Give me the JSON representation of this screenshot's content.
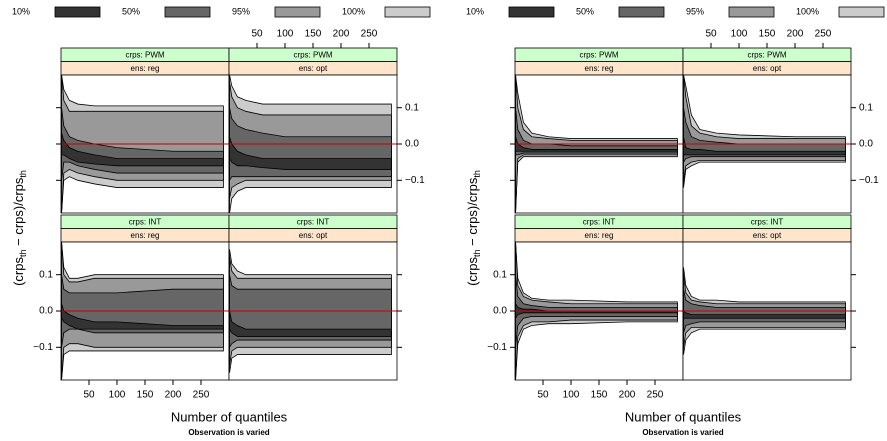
{
  "chart_data": [
    {
      "type": "band",
      "series": [
        {
          "name": "10%",
          "color": "#333333"
        },
        {
          "name": "50%",
          "color": "#666666"
        },
        {
          "name": "95%",
          "color": "#999999"
        },
        {
          "name": "100%",
          "color": "#cccccc"
        }
      ],
      "xlabel": "Number of quantiles",
      "subtitle": "Observation is varied",
      "ylabel": [
        "(crps",
        "th",
        " − crps)",
        "/",
        "crps",
        "th"
      ],
      "xlim": [
        0,
        300
      ],
      "ylim": [
        -0.19,
        0.19
      ],
      "xticks": [
        50,
        100,
        150,
        200,
        250
      ],
      "yticks": [
        {
          "value": -0.1,
          "label": "−0.1"
        },
        {
          "value": 0,
          "label": "0.0"
        },
        0.1
      ],
      "ref_line": 0,
      "ref_color": "#cc0000",
      "x": [
        1,
        5,
        15,
        30,
        60,
        100,
        200,
        290
      ],
      "panels": [
        {
          "strips": [
            "crps: PWM",
            "ens: reg"
          ],
          "bands": [
            {
              "lower": [
                -0.03,
                -0.03,
                -0.04,
                -0.05,
                -0.055,
                -0.06,
                -0.06,
                -0.06
              ],
              "upper": [
                0.03,
                0.01,
                -0.01,
                -0.02,
                -0.03,
                -0.04,
                -0.04,
                -0.04
              ]
            },
            {
              "lower": [
                -0.1,
                -0.05,
                -0.05,
                -0.06,
                -0.07,
                -0.08,
                -0.08,
                -0.08
              ],
              "upper": [
                0.1,
                0.05,
                0.02,
                0.01,
                0.0,
                -0.01,
                -0.02,
                -0.02
              ]
            },
            {
              "lower": [
                -0.19,
                -0.08,
                -0.07,
                -0.08,
                -0.09,
                -0.1,
                -0.1,
                -0.1
              ],
              "upper": [
                0.19,
                0.12,
                0.09,
                0.09,
                0.09,
                0.09,
                0.09,
                0.09
              ]
            },
            {
              "lower": [
                -0.19,
                -0.1,
                -0.09,
                -0.1,
                -0.11,
                -0.12,
                -0.12,
                -0.12
              ],
              "upper": [
                0.19,
                0.15,
                0.12,
                0.11,
                0.105,
                0.105,
                0.105,
                0.105
              ]
            }
          ]
        },
        {
          "strips": [
            "crps: PWM",
            "ens: opt"
          ],
          "bands": [
            {
              "lower": [
                -0.04,
                -0.05,
                -0.06,
                -0.06,
                -0.065,
                -0.07,
                -0.07,
                -0.07
              ],
              "upper": [
                0.02,
                0.0,
                -0.02,
                -0.03,
                -0.04,
                -0.04,
                -0.04,
                -0.04
              ]
            },
            {
              "lower": [
                -0.1,
                -0.09,
                -0.09,
                -0.09,
                -0.09,
                -0.09,
                -0.09,
                -0.09
              ],
              "upper": [
                0.1,
                0.07,
                0.05,
                0.04,
                0.03,
                0.02,
                0.02,
                0.02
              ]
            },
            {
              "lower": [
                -0.15,
                -0.12,
                -0.11,
                -0.1,
                -0.1,
                -0.1,
                -0.1,
                -0.1
              ],
              "upper": [
                0.17,
                0.13,
                0.1,
                0.09,
                0.08,
                0.08,
                0.08,
                0.08
              ]
            },
            {
              "lower": [
                -0.19,
                -0.15,
                -0.13,
                -0.12,
                -0.12,
                -0.12,
                -0.12,
                -0.12
              ],
              "upper": [
                0.19,
                0.16,
                0.13,
                0.12,
                0.11,
                0.11,
                0.11,
                0.11
              ]
            }
          ]
        },
        {
          "strips": [
            "crps: INT",
            "ens: reg"
          ],
          "bands": [
            {
              "lower": [
                -0.02,
                -0.03,
                -0.04,
                -0.05,
                -0.05,
                -0.05,
                -0.05,
                -0.05
              ],
              "upper": [
                0.02,
                0.0,
                -0.01,
                -0.02,
                -0.03,
                -0.03,
                -0.04,
                -0.04
              ]
            },
            {
              "lower": [
                -0.1,
                -0.06,
                -0.05,
                -0.05,
                -0.06,
                -0.06,
                -0.06,
                -0.06
              ],
              "upper": [
                0.1,
                0.06,
                0.05,
                0.05,
                0.05,
                0.05,
                0.06,
                0.06
              ]
            },
            {
              "lower": [
                -0.19,
                -0.1,
                -0.09,
                -0.09,
                -0.1,
                -0.1,
                -0.1,
                -0.1
              ],
              "upper": [
                0.19,
                0.1,
                0.08,
                0.08,
                0.09,
                0.09,
                0.09,
                0.09
              ]
            },
            {
              "lower": [
                -0.19,
                -0.12,
                -0.11,
                -0.11,
                -0.11,
                -0.11,
                -0.11,
                -0.11
              ],
              "upper": [
                0.19,
                0.12,
                0.09,
                0.09,
                0.1,
                0.1,
                0.1,
                0.1
              ]
            }
          ]
        },
        {
          "strips": [
            "crps: INT",
            "ens: opt"
          ],
          "bands": [
            {
              "lower": [
                -0.05,
                -0.06,
                -0.07,
                -0.07,
                -0.07,
                -0.07,
                -0.07,
                -0.07
              ],
              "upper": [
                0.0,
                -0.03,
                -0.04,
                -0.05,
                -0.05,
                -0.05,
                -0.05,
                -0.05
              ]
            },
            {
              "lower": [
                -0.1,
                -0.09,
                -0.08,
                -0.08,
                -0.08,
                -0.08,
                -0.08,
                -0.08
              ],
              "upper": [
                0.1,
                0.07,
                0.06,
                0.06,
                0.06,
                0.06,
                0.06,
                0.06
              ]
            },
            {
              "lower": [
                -0.15,
                -0.11,
                -0.1,
                -0.1,
                -0.1,
                -0.1,
                -0.1,
                -0.1
              ],
              "upper": [
                0.15,
                0.11,
                0.09,
                0.09,
                0.09,
                0.09,
                0.09,
                0.09
              ]
            },
            {
              "lower": [
                -0.17,
                -0.13,
                -0.12,
                -0.12,
                -0.12,
                -0.12,
                -0.12,
                -0.12
              ],
              "upper": [
                0.17,
                0.13,
                0.11,
                0.1,
                0.1,
                0.1,
                0.1,
                0.1
              ]
            }
          ]
        }
      ]
    },
    {
      "type": "band",
      "series": [
        {
          "name": "10%",
          "color": "#333333"
        },
        {
          "name": "50%",
          "color": "#666666"
        },
        {
          "name": "95%",
          "color": "#999999"
        },
        {
          "name": "100%",
          "color": "#cccccc"
        }
      ],
      "xlabel": "Number of quantiles",
      "subtitle": "Observation is varied",
      "ylabel": [
        "(crps",
        "th",
        " − crps)",
        "/",
        "crps",
        "th"
      ],
      "xlim": [
        0,
        300
      ],
      "ylim": [
        -0.19,
        0.19
      ],
      "xticks": [
        50,
        100,
        150,
        200,
        250
      ],
      "yticks": [
        {
          "value": -0.1,
          "label": "−0.1"
        },
        {
          "value": 0,
          "label": "0.0"
        },
        0.1
      ],
      "ref_line": 0,
      "ref_color": "#cc0000",
      "x": [
        1,
        5,
        15,
        30,
        60,
        100,
        200,
        290
      ],
      "panels": [
        {
          "strips": [
            "crps: PWM",
            "ens: reg"
          ],
          "bands": [
            {
              "lower": [
                -0.02,
                -0.02,
                -0.02,
                -0.02,
                -0.02,
                -0.02,
                -0.02,
                -0.02
              ],
              "upper": [
                0.02,
                0.0,
                -0.01,
                -0.015,
                -0.015,
                -0.015,
                -0.015,
                -0.015
              ]
            },
            {
              "lower": [
                -0.03,
                -0.03,
                -0.025,
                -0.025,
                -0.025,
                -0.025,
                -0.025,
                -0.025
              ],
              "upper": [
                0.1,
                0.04,
                0.01,
                0.0,
                0.0,
                -0.005,
                -0.005,
                -0.005
              ]
            },
            {
              "lower": [
                -0.19,
                -0.04,
                -0.03,
                -0.03,
                -0.03,
                -0.03,
                -0.03,
                -0.03
              ],
              "upper": [
                0.19,
                0.1,
                0.04,
                0.02,
                0.015,
                0.01,
                0.01,
                0.01
              ]
            },
            {
              "lower": [
                -0.19,
                -0.05,
                -0.035,
                -0.035,
                -0.035,
                -0.035,
                -0.035,
                -0.035
              ],
              "upper": [
                0.19,
                0.14,
                0.06,
                0.03,
                0.02,
                0.015,
                0.015,
                0.015
              ]
            }
          ]
        },
        {
          "strips": [
            "crps: PWM",
            "ens: opt"
          ],
          "bands": [
            {
              "lower": [
                -0.03,
                -0.03,
                -0.03,
                -0.03,
                -0.03,
                -0.03,
                -0.03,
                -0.03
              ],
              "upper": [
                0.02,
                -0.01,
                -0.015,
                -0.015,
                -0.02,
                -0.02,
                -0.02,
                -0.02
              ]
            },
            {
              "lower": [
                -0.05,
                -0.04,
                -0.035,
                -0.035,
                -0.035,
                -0.035,
                -0.035,
                -0.035
              ],
              "upper": [
                0.1,
                0.06,
                0.02,
                0.01,
                0.005,
                0.0,
                0.0,
                0.0
              ]
            },
            {
              "lower": [
                -0.1,
                -0.06,
                -0.05,
                -0.045,
                -0.045,
                -0.045,
                -0.045,
                -0.045
              ],
              "upper": [
                0.19,
                0.13,
                0.05,
                0.03,
                0.02,
                0.015,
                0.015,
                0.015
              ]
            },
            {
              "lower": [
                -0.12,
                -0.07,
                -0.06,
                -0.05,
                -0.05,
                -0.05,
                -0.05,
                -0.05
              ],
              "upper": [
                0.19,
                0.16,
                0.08,
                0.04,
                0.03,
                0.025,
                0.02,
                0.02
              ]
            }
          ]
        },
        {
          "strips": [
            "crps: INT",
            "ens: reg"
          ],
          "bands": [
            {
              "lower": [
                -0.02,
                -0.01,
                -0.005,
                -0.005,
                -0.005,
                -0.005,
                -0.005,
                -0.005
              ],
              "upper": [
                0.02,
                0.01,
                0.005,
                0.005,
                0.0,
                0.0,
                0.0,
                0.0
              ]
            },
            {
              "lower": [
                -0.1,
                -0.04,
                -0.02,
                -0.015,
                -0.015,
                -0.015,
                -0.015,
                -0.015
              ],
              "upper": [
                0.1,
                0.04,
                0.02,
                0.015,
                0.01,
                0.01,
                0.01,
                0.01
              ]
            },
            {
              "lower": [
                -0.19,
                -0.07,
                -0.04,
                -0.03,
                -0.03,
                -0.025,
                -0.025,
                -0.025
              ],
              "upper": [
                0.19,
                0.07,
                0.04,
                0.03,
                0.025,
                0.02,
                0.02,
                0.02
              ]
            },
            {
              "lower": [
                -0.19,
                -0.09,
                -0.05,
                -0.04,
                -0.035,
                -0.035,
                -0.03,
                -0.03
              ],
              "upper": [
                0.19,
                0.09,
                0.05,
                0.035,
                0.03,
                0.03,
                0.025,
                0.025
              ]
            }
          ]
        },
        {
          "strips": [
            "crps: INT",
            "ens: opt"
          ],
          "bands": [
            {
              "lower": [
                -0.02,
                -0.02,
                -0.02,
                -0.02,
                -0.02,
                -0.02,
                -0.02,
                -0.02
              ],
              "upper": [
                0.0,
                -0.005,
                -0.01,
                -0.01,
                -0.01,
                -0.01,
                -0.01,
                -0.01
              ]
            },
            {
              "lower": [
                -0.06,
                -0.04,
                -0.035,
                -0.03,
                -0.03,
                -0.03,
                -0.03,
                -0.03
              ],
              "upper": [
                0.06,
                0.03,
                0.02,
                0.015,
                0.01,
                0.01,
                0.01,
                0.01
              ]
            },
            {
              "lower": [
                -0.1,
                -0.06,
                -0.045,
                -0.045,
                -0.045,
                -0.045,
                -0.045,
                -0.045
              ],
              "upper": [
                0.1,
                0.05,
                0.03,
                0.025,
                0.02,
                0.02,
                0.02,
                0.02
              ]
            },
            {
              "lower": [
                -0.12,
                -0.08,
                -0.06,
                -0.05,
                -0.05,
                -0.05,
                -0.05,
                -0.05
              ],
              "upper": [
                0.12,
                0.07,
                0.04,
                0.03,
                0.03,
                0.025,
                0.025,
                0.025
              ]
            }
          ]
        }
      ]
    }
  ]
}
